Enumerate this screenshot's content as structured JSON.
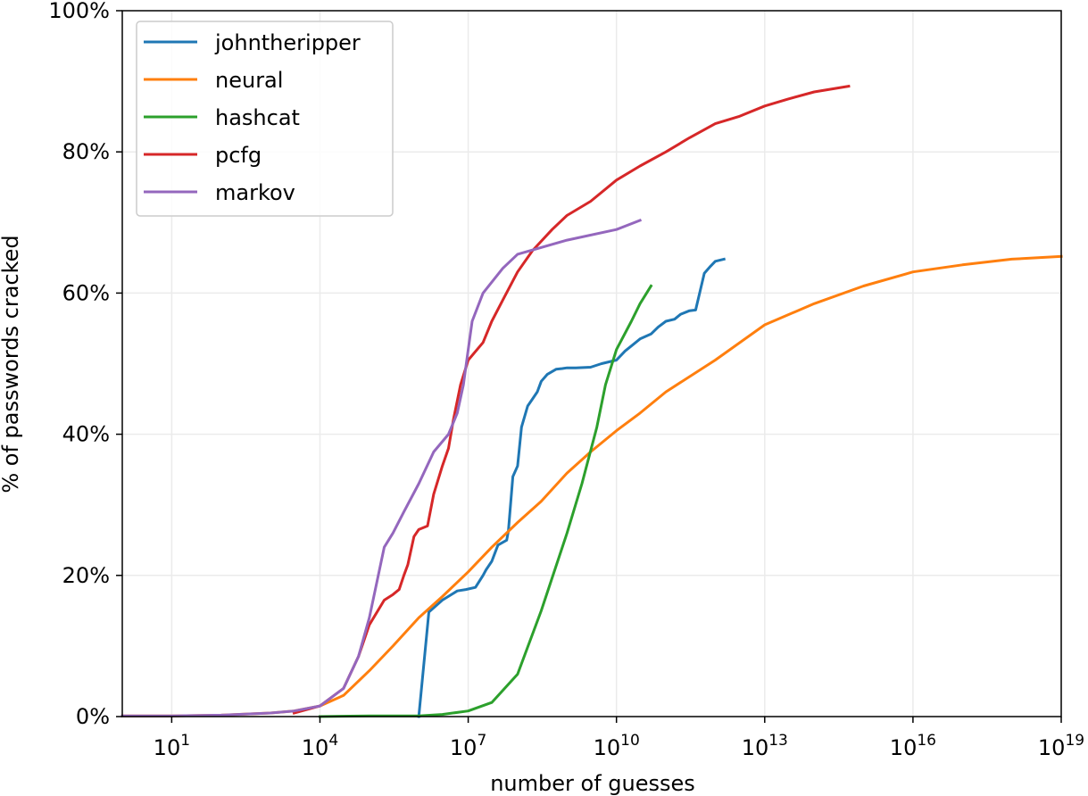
{
  "chart_data": {
    "type": "line",
    "title": "",
    "xlabel": "number of guesses",
    "ylabel": "% of passwords cracked",
    "x_scale": "log10",
    "xlim": [
      1,
      1e+19
    ],
    "ylim": [
      0,
      100
    ],
    "grid": true,
    "legend_position": "top-left",
    "x_ticks": [
      {
        "value": 10,
        "base": "10",
        "exp": "1"
      },
      {
        "value": 10000,
        "base": "10",
        "exp": "4"
      },
      {
        "value": 10000000,
        "base": "10",
        "exp": "7"
      },
      {
        "value": 10000000000.0,
        "base": "10",
        "exp": "10"
      },
      {
        "value": 10000000000000.0,
        "base": "10",
        "exp": "13"
      },
      {
        "value": 1e+16,
        "base": "10",
        "exp": "16"
      },
      {
        "value": 1e+19,
        "base": "10",
        "exp": "19"
      }
    ],
    "y_ticks": [
      {
        "value": 0,
        "label": "0%"
      },
      {
        "value": 20,
        "label": "20%"
      },
      {
        "value": 40,
        "label": "40%"
      },
      {
        "value": 60,
        "label": "60%"
      },
      {
        "value": 80,
        "label": "80%"
      },
      {
        "value": 100,
        "label": "100%"
      }
    ],
    "series": [
      {
        "name": "johntheripper",
        "color": "#1f77b4",
        "x": [
          1000000.0,
          1600000.0,
          3000000.0,
          6000000.0,
          9000000.0,
          14000000.0,
          20000000.0,
          23000000.0,
          30000000.0,
          40000000.0,
          60000000.0,
          65000000.0,
          80000000.0,
          100000000.0,
          120000000.0,
          160000000.0,
          200000000.0,
          250000000.0,
          300000000.0,
          400000000.0,
          600000000.0,
          800000000.0,
          1000000000.0,
          1500000000.0,
          3000000000.0,
          5000000000.0,
          10000000000.0,
          15000000000.0,
          20000000000.0,
          30000000000.0,
          50000000000.0,
          70000000000.0,
          100000000000.0,
          150000000000.0,
          200000000000.0,
          300000000000.0,
          400000000000.0,
          600000000000.0,
          800000000000.0,
          1000000000000.0,
          1500000000000.0
        ],
        "y": [
          0,
          14.8,
          16.5,
          17.8,
          18,
          18.3,
          20,
          20.8,
          22,
          24.3,
          25,
          26.3,
          34,
          35.5,
          41,
          44,
          45,
          46,
          47.5,
          48.5,
          49.2,
          49.3,
          49.4,
          49.4,
          49.5,
          50,
          50.5,
          51.8,
          52.5,
          53.5,
          54.2,
          55.2,
          56,
          56.3,
          57,
          57.5,
          57.6,
          62.8,
          63.8,
          64.5,
          64.8
        ]
      },
      {
        "name": "neural",
        "color": "#ff7f0e",
        "x": [
          1,
          10,
          100,
          1000,
          3000,
          10000,
          30000,
          100000,
          300000,
          1000000.0,
          3000000.0,
          10000000.0,
          30000000.0,
          100000000.0,
          300000000.0,
          1000000000.0,
          3000000000.0,
          10000000000.0,
          30000000000.0,
          100000000000.0,
          1000000000000.0,
          10000000000000.0,
          100000000000000.0,
          1000000000000000.0,
          1e+16,
          1e+17,
          1e+18,
          1e+19
        ],
        "y": [
          0.1,
          0.1,
          0.2,
          0.5,
          0.8,
          1.5,
          3,
          6.5,
          10,
          14,
          17,
          20.5,
          24,
          27.5,
          30.5,
          34.5,
          37.5,
          40.5,
          43,
          46,
          50.5,
          55.5,
          58.5,
          61,
          63,
          64,
          64.8,
          65.2
        ]
      },
      {
        "name": "hashcat",
        "color": "#2ca02c",
        "x": [
          10000,
          100000.0,
          1000000.0,
          3000000.0,
          10000000.0,
          30000000.0,
          100000000.0,
          300000000.0,
          1000000000.0,
          2000000000.0,
          4000000000.0,
          6000000000.0,
          10000000000.0,
          20000000000.0,
          30000000000.0,
          50000000000.0
        ],
        "y": [
          0,
          0.1,
          0.1,
          0.3,
          0.8,
          2,
          6,
          15,
          26,
          33,
          41,
          47,
          52,
          56,
          58.5,
          61
        ]
      },
      {
        "name": "pcfg",
        "color": "#d62728",
        "x": [
          3000,
          10000,
          30000,
          60000,
          100000.0,
          200000.0,
          300000.0,
          400000.0,
          500000.0,
          600000.0,
          800000.0,
          1000000.0,
          1500000.0,
          2000000.0,
          3000000.0,
          4000000.0,
          5000000.0,
          7000000.0,
          10000000.0,
          20000000.0,
          30000000.0,
          50000000.0,
          100000000.0,
          200000000.0,
          500000000.0,
          1000000000.0,
          3000000000.0,
          10000000000.0,
          30000000000.0,
          100000000000.0,
          300000000000.0,
          1000000000000.0,
          3000000000000.0,
          10000000000000.0,
          30000000000000.0,
          100000000000000.0,
          500000000000000.0
        ],
        "y": [
          0.5,
          1.5,
          4,
          8.5,
          13,
          16.5,
          17.3,
          18,
          20,
          21.5,
          25.5,
          26.5,
          27,
          31.5,
          35.5,
          38,
          42,
          47,
          50.5,
          53,
          56,
          59,
          63,
          66,
          69,
          71,
          73,
          76,
          78,
          80,
          82,
          84,
          85,
          86.5,
          87.5,
          88.5,
          89.3
        ]
      },
      {
        "name": "markov",
        "color": "#9467bd",
        "x": [
          1,
          10,
          100,
          1000,
          3000,
          10000,
          30000,
          60000,
          100000.0,
          200000.0,
          300000.0,
          500000.0,
          1000000.0,
          2000000.0,
          4000000.0,
          6000000.0,
          8000000.0,
          10000000.0,
          12000000.0,
          20000000.0,
          50000000.0,
          100000000.0,
          1000000000.0,
          10000000000.0,
          30000000000.0
        ],
        "y": [
          0.1,
          0.1,
          0.2,
          0.5,
          0.8,
          1.5,
          4,
          8.5,
          14,
          24,
          26,
          29,
          33,
          37.5,
          40,
          43,
          47,
          52,
          56,
          60,
          63.5,
          65.5,
          67.5,
          69,
          70.3
        ]
      }
    ]
  }
}
